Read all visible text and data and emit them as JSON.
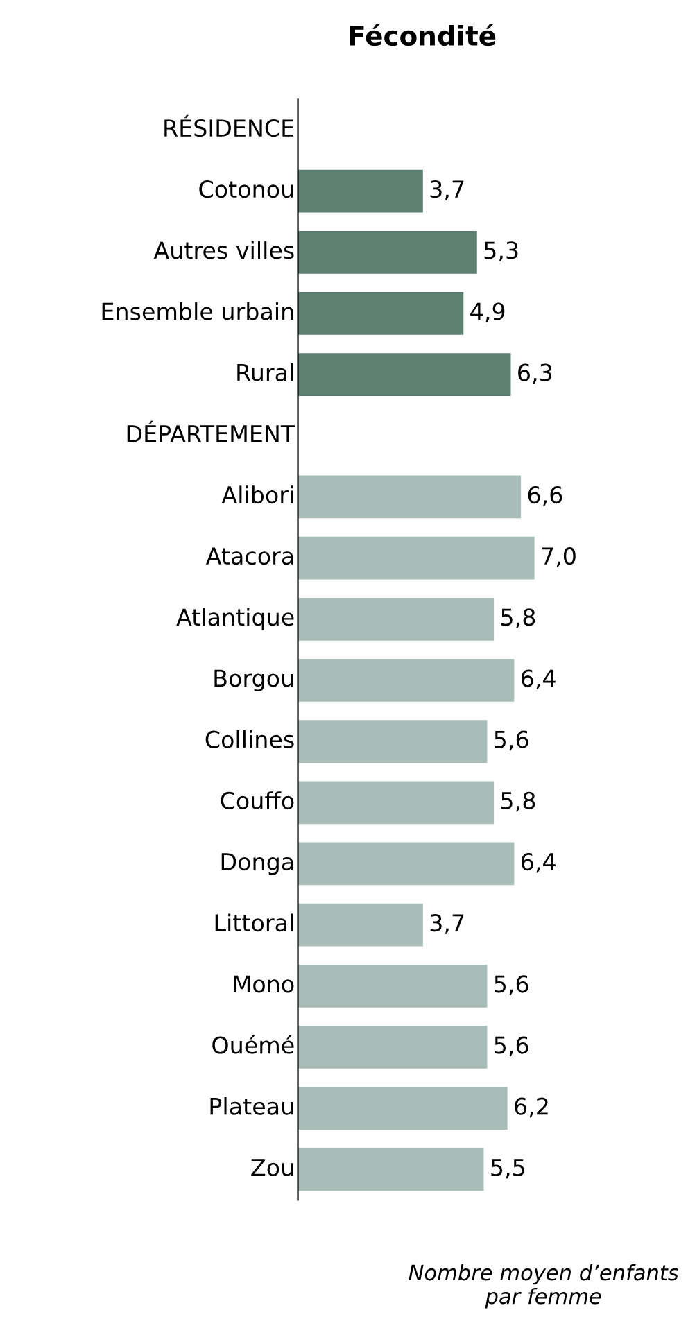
{
  "chart_data": {
    "type": "bar",
    "orientation": "horizontal",
    "title": "Fécondité",
    "xlabel": "Nombre moyen d’enfants par femme",
    "categories": [
      "RÉSIDENCE",
      "Cotonou",
      "Autres villes",
      "Ensemble urbain",
      "Rural",
      "DÉPARTEMENT",
      "Alibori",
      "Atacora",
      "Atlantique",
      "Borgou",
      "Collines",
      "Couffo",
      "Donga",
      "Littoral",
      "Mono",
      "Ouémé",
      "Plateau",
      "Zou"
    ],
    "values": [
      null,
      3.7,
      5.3,
      4.9,
      6.3,
      null,
      6.6,
      7.0,
      5.8,
      6.4,
      5.6,
      5.8,
      6.4,
      3.7,
      5.6,
      5.6,
      6.2,
      5.5
    ],
    "value_labels": [
      null,
      "3,7",
      "5,3",
      "4,9",
      "6,3",
      null,
      "6,6",
      "7,0",
      "5,8",
      "6,4",
      "5,6",
      "5,8",
      "6,4",
      "3,7",
      "5,6",
      "5,6",
      "6,2",
      "5,5"
    ],
    "colors": [
      null,
      "#5e8070",
      "#5e8070",
      "#5e8070",
      "#5e8070",
      null,
      "#a8bdb8",
      "#a8bdb8",
      "#a8bdb8",
      "#a8bdb8",
      "#a8bdb8",
      "#a8bdb8",
      "#a8bdb8",
      "#a8bdb8",
      "#a8bdb8",
      "#a8bdb8",
      "#a8bdb8",
      "#a8bdb8"
    ],
    "grid": false,
    "legend": false
  }
}
